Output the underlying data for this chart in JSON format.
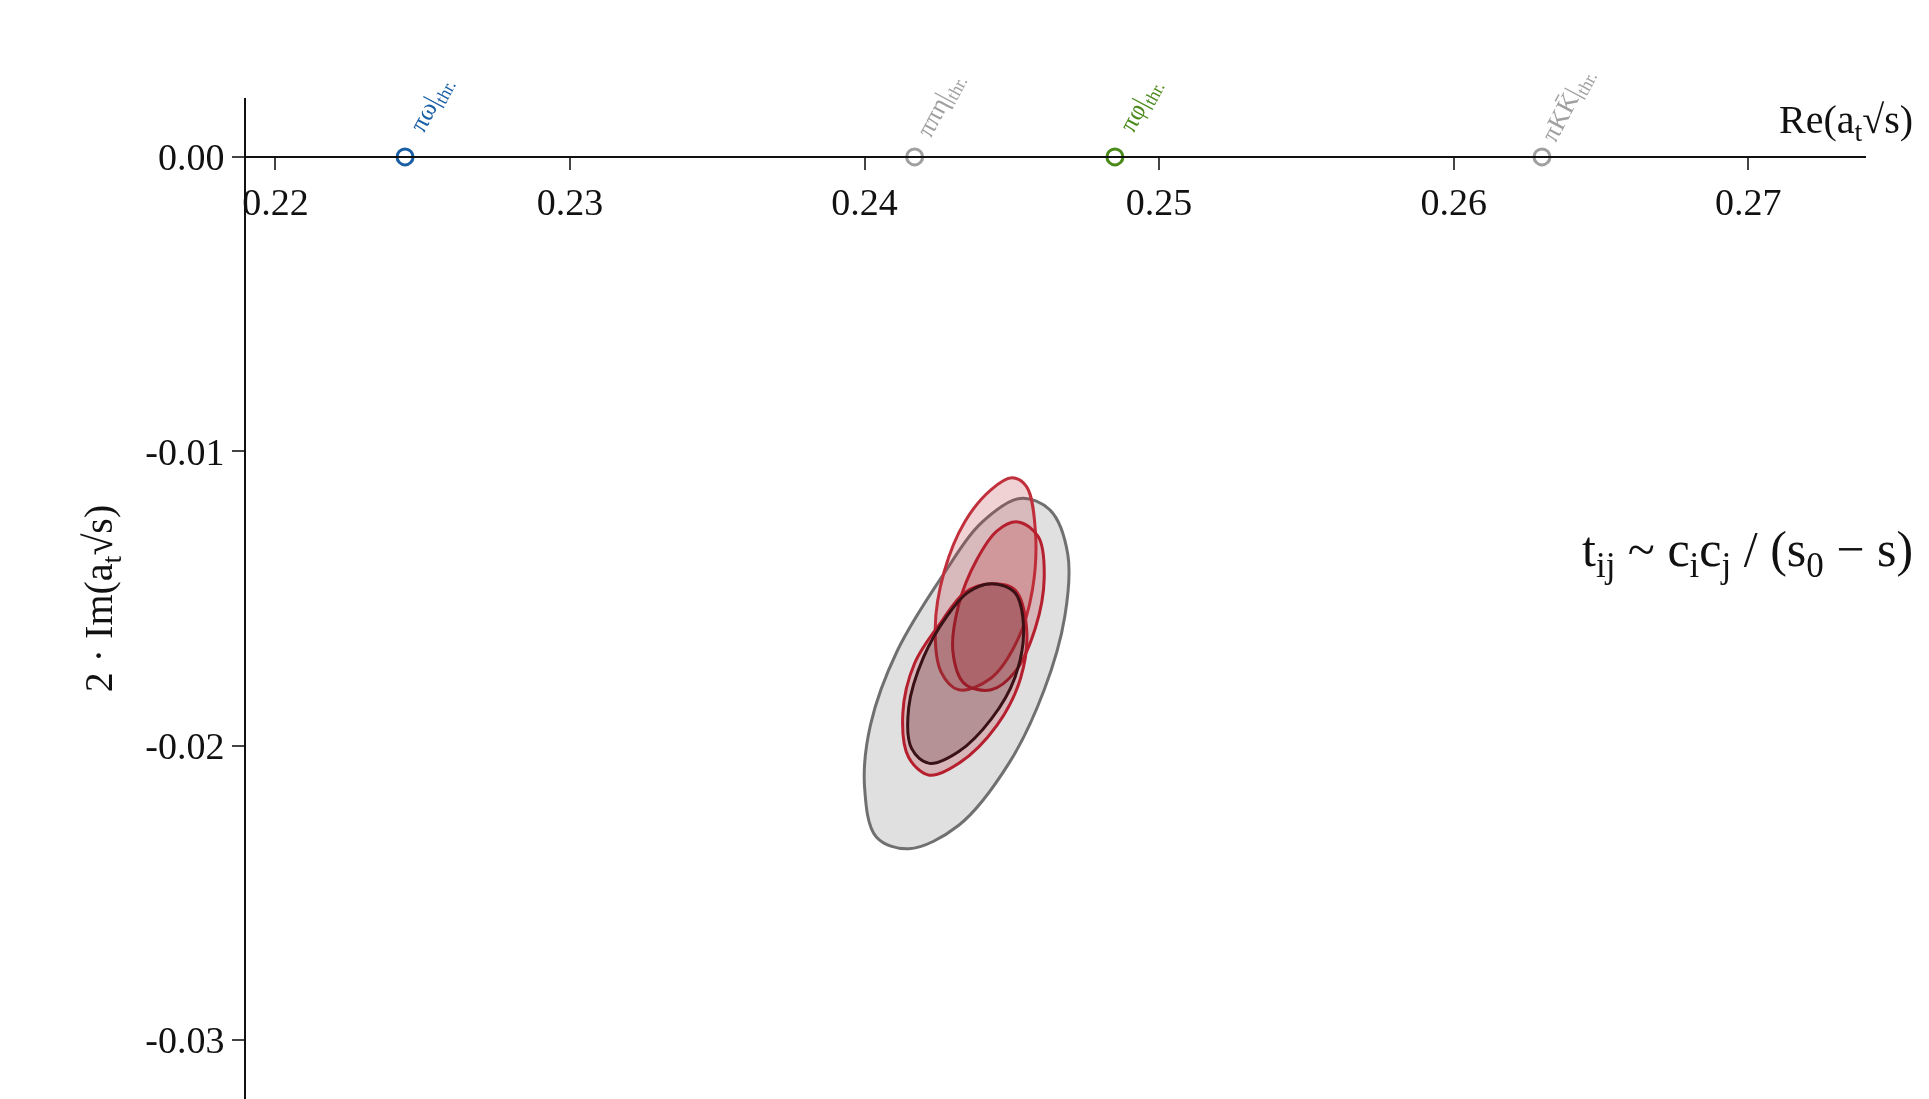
{
  "chart_data": {
    "type": "area",
    "xlabel": "Re(a$_{t}$√s)",
    "ylabel": "2 · Im(a$_{t}$√s)",
    "xlim": [
      0.219,
      0.274
    ],
    "ylim": [
      -0.032,
      0.002
    ],
    "xticks": [
      0.22,
      0.23,
      0.24,
      0.25,
      0.26,
      0.27
    ],
    "yticks": [
      {
        "value": 0,
        "label": "0.00"
      },
      {
        "value": -0.01,
        "label": "-0.01"
      },
      {
        "value": -0.02,
        "label": "-0.02"
      },
      {
        "value": -0.03,
        "label": "-0.03"
      }
    ],
    "grid": false,
    "marker": "none",
    "annotations": [
      "t$_{ij}$ ~ c$_{i}$c$_{j}$ / (s$_{0}$ − s)"
    ],
    "series": [
      {
        "color": "#707070",
        "x": [
          0.2453,
          0.2463,
          0.2469,
          0.2468,
          0.2461,
          0.2449,
          0.2432,
          0.2415,
          0.2404,
          0.24,
          0.2402,
          0.2411,
          0.2426,
          0.244,
          0.2453
        ],
        "values": [
          -0.0116,
          -0.012,
          -0.0135,
          -0.0156,
          -0.0181,
          -0.0206,
          -0.0227,
          -0.0235,
          -0.0231,
          -0.0214,
          -0.0193,
          -0.0168,
          -0.0143,
          -0.0124,
          -0.0116
        ]
      },
      {
        "color": "#c0303c",
        "x": [
          0.245,
          0.2455,
          0.2458,
          0.2457,
          0.2452,
          0.2443,
          0.2432,
          0.2426,
          0.2424,
          0.2427,
          0.2434,
          0.2443,
          0.245
        ],
        "values": [
          -0.0109,
          -0.0112,
          -0.0127,
          -0.0147,
          -0.0164,
          -0.0177,
          -0.0181,
          -0.0175,
          -0.016,
          -0.0141,
          -0.0124,
          -0.0113,
          -0.0109
        ]
      },
      {
        "color": "#b51f2e",
        "x": [
          0.2452,
          0.2459,
          0.2461,
          0.2458,
          0.2451,
          0.2443,
          0.2434,
          0.243,
          0.2432,
          0.2438,
          0.2445,
          0.2452
        ],
        "values": [
          -0.0124,
          -0.0129,
          -0.0143,
          -0.016,
          -0.0175,
          -0.0181,
          -0.0179,
          -0.0168,
          -0.0152,
          -0.0137,
          -0.0127,
          -0.0124
        ]
      },
      {
        "color": "#b51f2e",
        "x": [
          0.2443,
          0.2451,
          0.2455,
          0.2453,
          0.2445,
          0.2432,
          0.2422,
          0.2415,
          0.2413,
          0.2417,
          0.2426,
          0.2434,
          0.2443
        ],
        "values": [
          -0.0145,
          -0.0147,
          -0.016,
          -0.0177,
          -0.0193,
          -0.0206,
          -0.021,
          -0.0204,
          -0.0189,
          -0.0172,
          -0.0158,
          -0.0148,
          -0.0145
        ]
      },
      {
        "color": "#3a1216",
        "x": [
          0.2443,
          0.2451,
          0.2454,
          0.2451,
          0.2443,
          0.2432,
          0.2422,
          0.2416,
          0.2415,
          0.242,
          0.2428,
          0.2435,
          0.2443
        ],
        "values": [
          -0.0145,
          -0.0148,
          -0.016,
          -0.0177,
          -0.0191,
          -0.0202,
          -0.0206,
          -0.0201,
          -0.0187,
          -0.017,
          -0.0156,
          -0.0148,
          -0.0145
        ]
      },
      {
        "type": "scatter",
        "marker": "circle",
        "name": "πω|$_{thr.}$",
        "color": "#1a5fa5",
        "x": [
          0.2244
        ],
        "values": [
          0
        ]
      },
      {
        "type": "scatter",
        "marker": "circle",
        "name": "ππη|$_{thr.}$",
        "color": "#a0a0a0",
        "x": [
          0.2417
        ],
        "values": [
          0
        ]
      },
      {
        "type": "scatter",
        "marker": "circle",
        "name": "πφ|$_{thr.}$",
        "color": "#4a8a1a",
        "x": [
          0.2485
        ],
        "values": [
          0
        ]
      },
      {
        "type": "scatter",
        "marker": "circle",
        "name": "πKK̄|$_{thr.}$",
        "color": "#a0a0a0",
        "x": [
          0.263
        ],
        "values": [
          0
        ]
      }
    ]
  }
}
